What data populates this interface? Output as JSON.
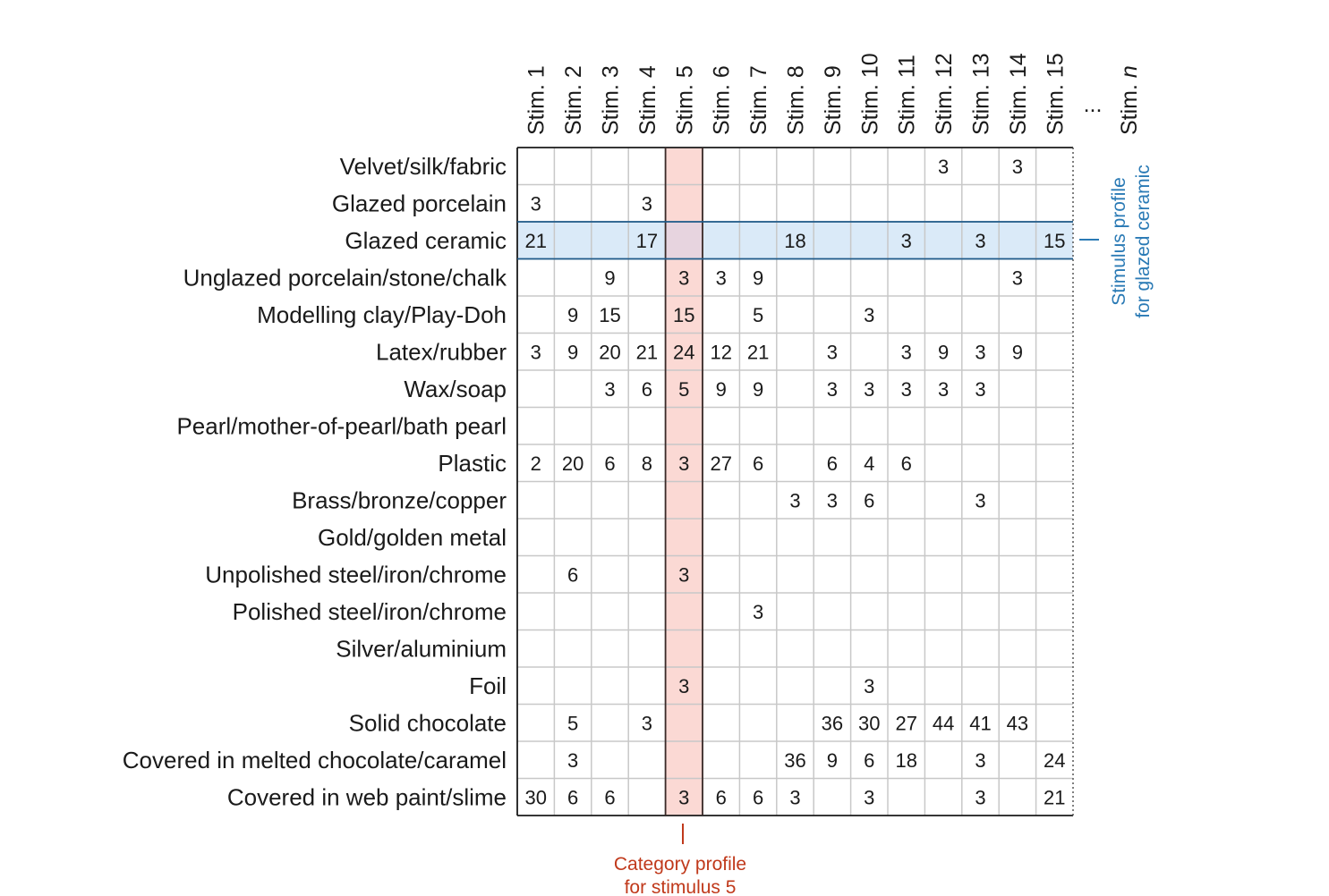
{
  "chart_data": {
    "type": "table",
    "columns": [
      "Stim. 1",
      "Stim. 2",
      "Stim. 3",
      "Stim. 4",
      "Stim. 5",
      "Stim. 6",
      "Stim. 7",
      "Stim. 8",
      "Stim. 9",
      "Stim. 10",
      "Stim. 11",
      "Stim. 12",
      "Stim. 13",
      "Stim. 14",
      "Stim. 15"
    ],
    "ellipsis": "...",
    "last_column": {
      "prefix": "Stim. ",
      "italic": "n"
    },
    "rows": [
      {
        "label": "Velvet/silk/fabric",
        "values": [
          "",
          "",
          "",
          "",
          "",
          "",
          "",
          "",
          "",
          "",
          "",
          "3",
          "",
          "3",
          ""
        ]
      },
      {
        "label": "Glazed porcelain",
        "values": [
          "3",
          "",
          "",
          "3",
          "",
          "",
          "",
          "",
          "",
          "",
          "",
          "",
          "",
          "",
          ""
        ]
      },
      {
        "label": "Glazed ceramic",
        "values": [
          "21",
          "",
          "",
          "17",
          "",
          "",
          "",
          "18",
          "",
          "",
          "3",
          "",
          "3",
          "",
          "15"
        ]
      },
      {
        "label": "Unglazed porcelain/stone/chalk",
        "values": [
          "",
          "",
          "9",
          "",
          "3",
          "3",
          "9",
          "",
          "",
          "",
          "",
          "",
          "",
          "3",
          ""
        ]
      },
      {
        "label": "Modelling clay/Play-Doh",
        "values": [
          "",
          "9",
          "15",
          "",
          "15",
          "",
          "5",
          "",
          "",
          "3",
          "",
          "",
          "",
          "",
          ""
        ]
      },
      {
        "label": "Latex/rubber",
        "values": [
          "3",
          "9",
          "20",
          "21",
          "24",
          "12",
          "21",
          "",
          "3",
          "",
          "3",
          "9",
          "3",
          "9",
          ""
        ]
      },
      {
        "label": "Wax/soap",
        "values": [
          "",
          "",
          "3",
          "6",
          "5",
          "9",
          "9",
          "",
          "3",
          "3",
          "3",
          "3",
          "3",
          "",
          ""
        ]
      },
      {
        "label": "Pearl/mother-of-pearl/bath pearl",
        "values": [
          "",
          "",
          "",
          "",
          "",
          "",
          "",
          "",
          "",
          "",
          "",
          "",
          "",
          "",
          ""
        ]
      },
      {
        "label": "Plastic",
        "values": [
          "2",
          "20",
          "6",
          "8",
          "3",
          "27",
          "6",
          "",
          "6",
          "4",
          "6",
          "",
          "",
          "",
          ""
        ]
      },
      {
        "label": "Brass/bronze/copper",
        "values": [
          "",
          "",
          "",
          "",
          "",
          "",
          "",
          "3",
          "3",
          "6",
          "",
          "",
          "3",
          "",
          ""
        ]
      },
      {
        "label": "Gold/golden metal",
        "values": [
          "",
          "",
          "",
          "",
          "",
          "",
          "",
          "",
          "",
          "",
          "",
          "",
          "",
          "",
          ""
        ]
      },
      {
        "label": "Unpolished steel/iron/chrome",
        "values": [
          "",
          "6",
          "",
          "",
          "3",
          "",
          "",
          "",
          "",
          "",
          "",
          "",
          "",
          "",
          ""
        ]
      },
      {
        "label": "Polished steel/iron/chrome",
        "values": [
          "",
          "",
          "",
          "",
          "",
          "",
          "3",
          "",
          "",
          "",
          "",
          "",
          "",
          "",
          ""
        ]
      },
      {
        "label": "Silver/aluminium",
        "values": [
          "",
          "",
          "",
          "",
          "",
          "",
          "",
          "",
          "",
          "",
          "",
          "",
          "",
          "",
          ""
        ]
      },
      {
        "label": "Foil",
        "values": [
          "",
          "",
          "",
          "",
          "3",
          "",
          "",
          "",
          "",
          "3",
          "",
          "",
          "",
          "",
          ""
        ]
      },
      {
        "label": "Solid chocolate",
        "values": [
          "",
          "5",
          "",
          "3",
          "",
          "",
          "",
          "",
          "36",
          "30",
          "27",
          "44",
          "41",
          "43",
          ""
        ]
      },
      {
        "label": "Covered in melted chocolate/caramel",
        "values": [
          "",
          "3",
          "",
          "",
          "",
          "",
          "",
          "36",
          "9",
          "6",
          "18",
          "",
          "3",
          "",
          "24"
        ]
      },
      {
        "label": "Covered in web paint/slime",
        "values": [
          "30",
          "6",
          "6",
          "",
          "3",
          "6",
          "6",
          "3",
          "",
          "3",
          "",
          "",
          "3",
          "",
          "21"
        ]
      }
    ],
    "highlight_column_index": 4,
    "highlight_row_index": 2,
    "annotations": {
      "category_profile": [
        "Category profile",
        "for stimulus 5"
      ],
      "stimulus_profile": [
        "Stimulus profile",
        "for glazed ceramic"
      ]
    },
    "colors": {
      "column_highlight_fill": "#fbd9d4",
      "column_highlight_border": "#3a2a28",
      "row_highlight_fill": "#daeaf8",
      "row_highlight_border": "#1e5a8a",
      "overlap_fill": "#e7d4df",
      "annotation_red": "#c0391b",
      "annotation_blue": "#2a7ab5",
      "grid": "#c8c8c8",
      "frame": "#1a1a1a"
    }
  }
}
